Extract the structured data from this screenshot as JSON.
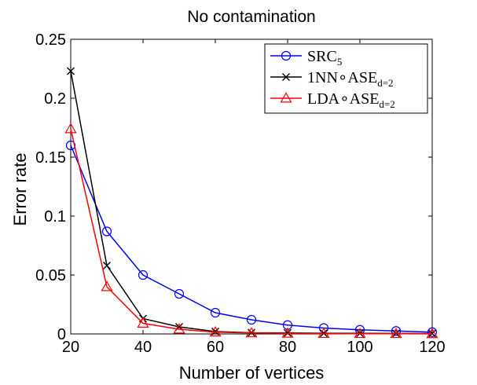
{
  "chart_data": {
    "type": "line",
    "title": "No contamination",
    "xlabel": "Number of vertices",
    "ylabel": "Error rate",
    "xlim": [
      20,
      120
    ],
    "ylim": [
      0,
      0.25
    ],
    "xticks": [
      "20",
      "40",
      "60",
      "80",
      "100",
      "120"
    ],
    "yticks": [
      "0",
      "0.05",
      "0.1",
      "0.15",
      "0.2",
      "0.25"
    ],
    "grid": false,
    "legend_position": "top-right",
    "x": [
      20,
      30,
      40,
      50,
      60,
      70,
      80,
      90,
      100,
      110,
      120
    ],
    "series": [
      {
        "name": "SRC",
        "name_sub": "5",
        "color": "#0000ff",
        "marker": "circle",
        "values": [
          0.16,
          0.087,
          0.05,
          0.034,
          0.018,
          0.012,
          0.0075,
          0.005,
          0.0035,
          0.0025,
          0.0015
        ]
      },
      {
        "name": "1NN∘ASE",
        "name_sub": "d=2",
        "color": "#000000",
        "marker": "x",
        "values": [
          0.223,
          0.058,
          0.013,
          0.006,
          0.002,
          0.001,
          0.0008,
          0.0006,
          0.0005,
          0.0004,
          0.0003
        ]
      },
      {
        "name": "LDA∘ASE",
        "name_sub": "d=2",
        "color": "#ff0000",
        "marker": "triangle",
        "values": [
          0.174,
          0.04,
          0.009,
          0.004,
          0.0015,
          0.0008,
          0.0005,
          0.0003,
          0.0002,
          0.0002,
          0.0001
        ]
      }
    ]
  }
}
